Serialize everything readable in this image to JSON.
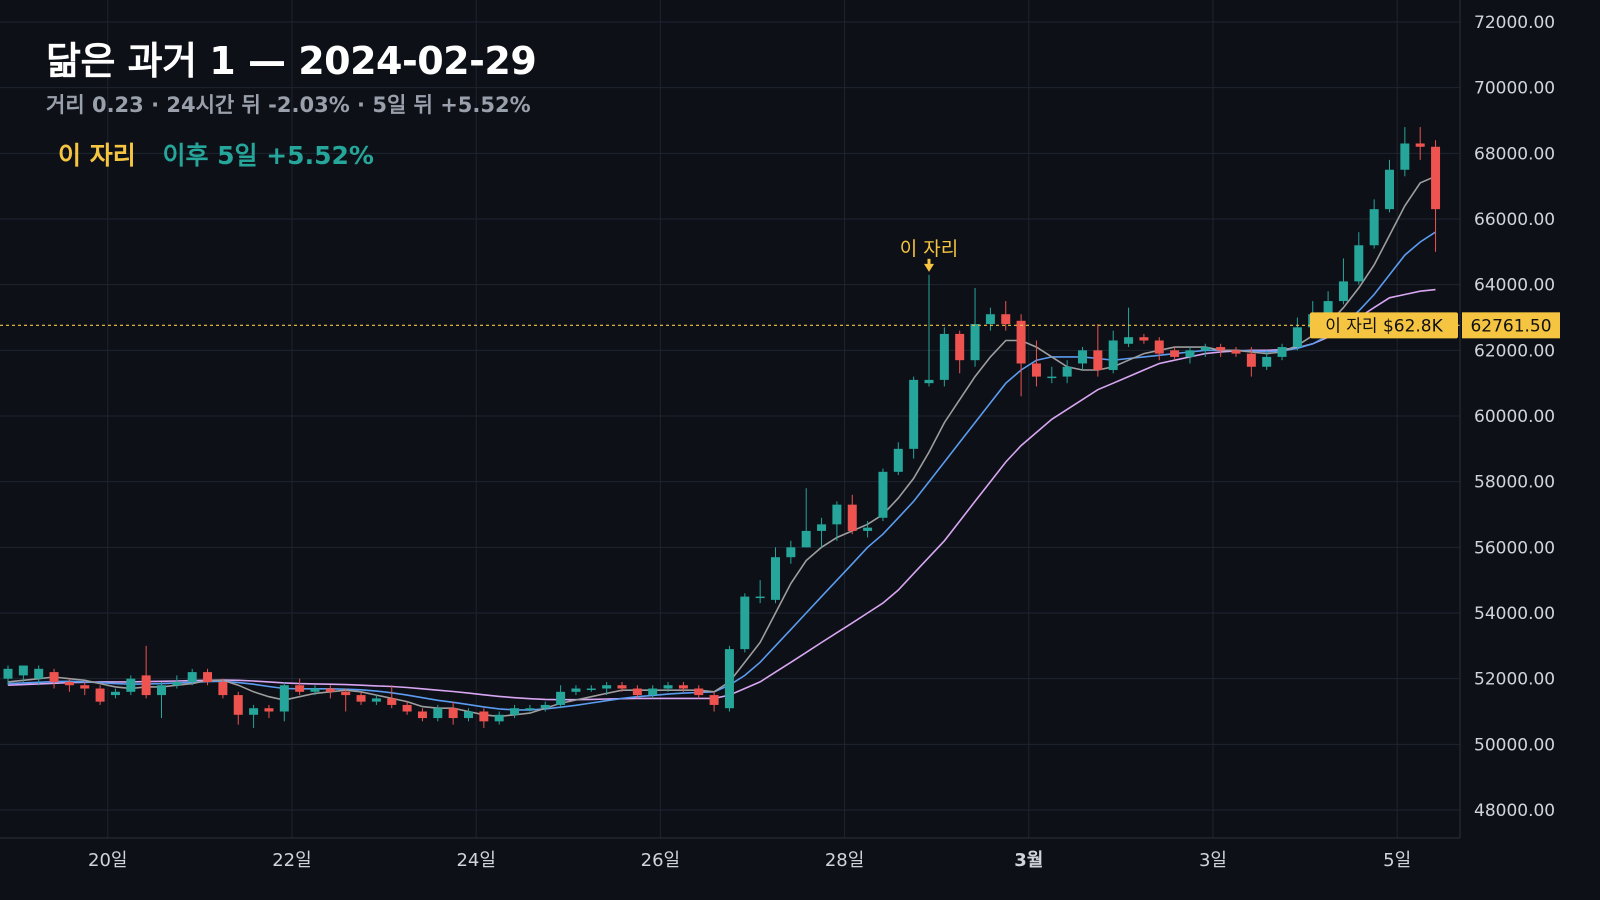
{
  "header": {
    "title": "닮은 과거 1 — 2024-02-29",
    "subtitle": "거리 0.23 · 24시간 뒤 -2.03% · 5일 뒤 +5.52%"
  },
  "marker_legend": {
    "here_label": "이 자리",
    "after_label": "이후 5일 +5.52%"
  },
  "colors": {
    "background": "#0d1017",
    "up": "#26a69a",
    "down": "#ef5350",
    "marker": "#f5c542",
    "ma_fast": "#9e9e9e",
    "ma_mid": "#5b9cf0",
    "ma_slow": "#d8a6f2",
    "grid": "#1f2430",
    "axis_text": "#d0d4dc"
  },
  "chart_data": {
    "type": "candlestick",
    "ylim": [
      47000,
      72500
    ],
    "y_ticks": [
      "72000.00",
      "70000.00",
      "68000.00",
      "66000.00",
      "64000.00",
      "62000.00",
      "60000.00",
      "58000.00",
      "56000.00",
      "54000.00",
      "52000.00",
      "50000.00",
      "48000.00"
    ],
    "y_tick_values": [
      72000,
      70000,
      68000,
      66000,
      64000,
      62000,
      60000,
      58000,
      56000,
      54000,
      52000,
      50000,
      48000
    ],
    "x_ticks": [
      {
        "label": "20일",
        "i": 6.5
      },
      {
        "label": "22일",
        "i": 18.5
      },
      {
        "label": "24일",
        "i": 30.5
      },
      {
        "label": "26일",
        "i": 42.5
      },
      {
        "label": "28일",
        "i": 54.5
      },
      {
        "label": "3월",
        "i": 66.5,
        "bold": true
      },
      {
        "label": "3일",
        "i": 78.5
      },
      {
        "label": "5일",
        "i": 90.5
      }
    ],
    "marker": {
      "index": 60,
      "price": 62761.5,
      "price_label": "62761.50",
      "tag_label": "이 자리 $62.8K",
      "arrow_label": "이 자리"
    },
    "candles": [
      [
        52000,
        52300,
        51800,
        52400
      ],
      [
        52100,
        52400,
        51900,
        52400
      ],
      [
        52000,
        52300,
        51800,
        52400
      ],
      [
        52200,
        51900,
        51700,
        52300
      ],
      [
        51900,
        51800,
        51600,
        52000
      ],
      [
        51800,
        51700,
        51500,
        51900
      ],
      [
        51700,
        51300,
        51200,
        51800
      ],
      [
        51500,
        51600,
        51400,
        51700
      ],
      [
        51600,
        52000,
        51500,
        52100
      ],
      [
        52100,
        51500,
        51400,
        53000
      ],
      [
        51500,
        51800,
        50800,
        51900
      ],
      [
        51800,
        51900,
        51700,
        52100
      ],
      [
        51900,
        52200,
        51800,
        52300
      ],
      [
        52200,
        51900,
        51800,
        52300
      ],
      [
        51900,
        51500,
        51400,
        52000
      ],
      [
        51500,
        50900,
        50600,
        51600
      ],
      [
        50900,
        51100,
        50500,
        51200
      ],
      [
        51100,
        51000,
        50800,
        51200
      ],
      [
        51000,
        51800,
        50700,
        51900
      ],
      [
        51800,
        51600,
        51500,
        52000
      ],
      [
        51600,
        51700,
        51500,
        51800
      ],
      [
        51700,
        51600,
        51400,
        51800
      ],
      [
        51600,
        51500,
        51000,
        51700
      ],
      [
        51500,
        51300,
        51200,
        51600
      ],
      [
        51300,
        51400,
        51200,
        51500
      ],
      [
        51400,
        51200,
        51100,
        51800
      ],
      [
        51200,
        51000,
        50900,
        51300
      ],
      [
        51000,
        50800,
        50700,
        51100
      ],
      [
        50800,
        51100,
        50700,
        51200
      ],
      [
        51100,
        50800,
        50600,
        51300
      ],
      [
        50800,
        51000,
        50700,
        51100
      ],
      [
        51000,
        50700,
        50500,
        51100
      ],
      [
        50700,
        50900,
        50600,
        51000
      ],
      [
        50900,
        51100,
        50800,
        51200
      ],
      [
        51100,
        51100,
        51000,
        51200
      ],
      [
        51100,
        51200,
        51000,
        51300
      ],
      [
        51200,
        51600,
        51100,
        51800
      ],
      [
        51600,
        51700,
        51500,
        51800
      ],
      [
        51700,
        51700,
        51600,
        51800
      ],
      [
        51700,
        51800,
        51500,
        51900
      ],
      [
        51800,
        51700,
        51600,
        51900
      ],
      [
        51700,
        51500,
        51400,
        51800
      ],
      [
        51500,
        51700,
        51400,
        51800
      ],
      [
        51700,
        51800,
        51600,
        51900
      ],
      [
        51800,
        51700,
        51600,
        51900
      ],
      [
        51700,
        51500,
        51400,
        51800
      ],
      [
        51500,
        51200,
        51000,
        51600
      ],
      [
        51100,
        52900,
        51000,
        53000
      ],
      [
        52900,
        54500,
        52800,
        54600
      ],
      [
        54500,
        54500,
        54300,
        55000
      ],
      [
        54400,
        55700,
        54300,
        56000
      ],
      [
        55700,
        56000,
        55500,
        56200
      ],
      [
        56000,
        56500,
        56000,
        57800
      ],
      [
        56500,
        56700,
        56000,
        56900
      ],
      [
        56700,
        57300,
        56200,
        57400
      ],
      [
        57300,
        56500,
        56400,
        57600
      ],
      [
        56500,
        56600,
        56300,
        56800
      ],
      [
        56900,
        58300,
        56800,
        58400
      ],
      [
        58300,
        59000,
        58200,
        59200
      ],
      [
        59000,
        61100,
        58700,
        61200
      ],
      [
        61000,
        61100,
        60900,
        64300
      ],
      [
        61100,
        62500,
        60900,
        62700
      ],
      [
        62500,
        61700,
        61300,
        62600
      ],
      [
        61700,
        62800,
        61500,
        63900
      ],
      [
        62800,
        63100,
        62600,
        63300
      ],
      [
        63100,
        62800,
        62600,
        63500
      ],
      [
        62900,
        61600,
        60600,
        63100
      ],
      [
        61600,
        61200,
        60900,
        62300
      ],
      [
        61200,
        61200,
        61000,
        61500
      ],
      [
        61200,
        61500,
        61000,
        61700
      ],
      [
        61600,
        62000,
        61400,
        62100
      ],
      [
        62000,
        61400,
        61200,
        62800
      ],
      [
        61400,
        62300,
        61300,
        62600
      ],
      [
        62200,
        62400,
        62100,
        63300
      ],
      [
        62400,
        62300,
        62200,
        62500
      ],
      [
        62300,
        61900,
        61700,
        62400
      ],
      [
        62000,
        61800,
        61700,
        62100
      ],
      [
        61800,
        62000,
        61600,
        62100
      ],
      [
        62000,
        62100,
        61800,
        62200
      ],
      [
        62100,
        62000,
        61800,
        62200
      ],
      [
        62000,
        61900,
        61800,
        62100
      ],
      [
        61900,
        61500,
        61200,
        62100
      ],
      [
        61500,
        61800,
        61400,
        62000
      ],
      [
        61800,
        62100,
        61700,
        62200
      ],
      [
        62100,
        62700,
        62000,
        63000
      ],
      [
        62700,
        63100,
        62600,
        63500
      ],
      [
        63000,
        63500,
        62900,
        63800
      ],
      [
        63500,
        64100,
        63400,
        64800
      ],
      [
        64100,
        65200,
        64000,
        65600
      ],
      [
        65200,
        66300,
        65100,
        66600
      ],
      [
        66300,
        67500,
        66200,
        67800
      ],
      [
        67500,
        68300,
        67300,
        68800
      ],
      [
        68300,
        68200,
        67800,
        68800
      ],
      [
        68200,
        66300,
        65000,
        68400
      ]
    ],
    "ma_fast": [
      51900,
      51950,
      52000,
      52050,
      52000,
      51950,
      51850,
      51750,
      51700,
      51750,
      51750,
      51800,
      51850,
      51950,
      51950,
      51800,
      51600,
      51450,
      51350,
      51450,
      51550,
      51600,
      51650,
      51600,
      51500,
      51400,
      51300,
      51150,
      51100,
      51100,
      51000,
      50900,
      50850,
      50900,
      50950,
      51100,
      51250,
      51350,
      51450,
      51550,
      51650,
      51650,
      51650,
      51650,
      51650,
      51650,
      51600,
      51900,
      52500,
      53100,
      54000,
      54900,
      55600,
      56000,
      56300,
      56500,
      56700,
      57000,
      57500,
      58100,
      58900,
      59800,
      60500,
      61200,
      61800,
      62300,
      62300,
      62100,
      61800,
      61500,
      61400,
      61400,
      61500,
      61700,
      61900,
      62000,
      62100,
      62100,
      62100,
      62000,
      62000,
      61950,
      61900,
      61950,
      62150,
      62450,
      62800,
      63300,
      63900,
      64600,
      65500,
      66400,
      67100,
      67300
    ],
    "ma_mid": [
      51850,
      51870,
      51890,
      51910,
      51920,
      51900,
      51880,
      51850,
      51830,
      51840,
      51850,
      51870,
      51890,
      51910,
      51920,
      51880,
      51830,
      51760,
      51700,
      51690,
      51690,
      51690,
      51680,
      51660,
      51620,
      51570,
      51500,
      51420,
      51340,
      51280,
      51210,
      51140,
      51080,
      51050,
      51050,
      51080,
      51130,
      51190,
      51260,
      51330,
      51400,
      51450,
      51490,
      51530,
      51560,
      51580,
      51600,
      51800,
      52100,
      52500,
      53000,
      53500,
      54000,
      54500,
      55000,
      55500,
      56000,
      56400,
      56900,
      57400,
      58000,
      58600,
      59200,
      59800,
      60400,
      61000,
      61400,
      61700,
      61800,
      61800,
      61800,
      61750,
      61700,
      61750,
      61800,
      61850,
      61900,
      61950,
      62000,
      62000,
      62000,
      61980,
      61960,
      61980,
      62060,
      62200,
      62450,
      62800,
      63200,
      63700,
      64300,
      64900,
      65300,
      65600
    ],
    "ma_slow": [
      51800,
      51820,
      51840,
      51860,
      51880,
      51890,
      51900,
      51900,
      51900,
      51910,
      51920,
      51930,
      51940,
      51950,
      51960,
      51950,
      51930,
      51900,
      51870,
      51850,
      51840,
      51830,
      51820,
      51800,
      51780,
      51760,
      51730,
      51690,
      51650,
      51610,
      51560,
      51510,
      51460,
      51420,
      51390,
      51370,
      51360,
      51360,
      51370,
      51380,
      51390,
      51400,
      51400,
      51400,
      51400,
      51400,
      51400,
      51500,
      51700,
      51900,
      52200,
      52500,
      52800,
      53100,
      53400,
      53700,
      54000,
      54300,
      54700,
      55200,
      55700,
      56200,
      56800,
      57400,
      58000,
      58600,
      59100,
      59500,
      59900,
      60200,
      60500,
      60800,
      61000,
      61200,
      61400,
      61600,
      61700,
      61800,
      61900,
      61950,
      61980,
      62000,
      62000,
      62020,
      62080,
      62200,
      62400,
      62700,
      63000,
      63300,
      63600,
      63700,
      63800,
      63850
    ]
  }
}
